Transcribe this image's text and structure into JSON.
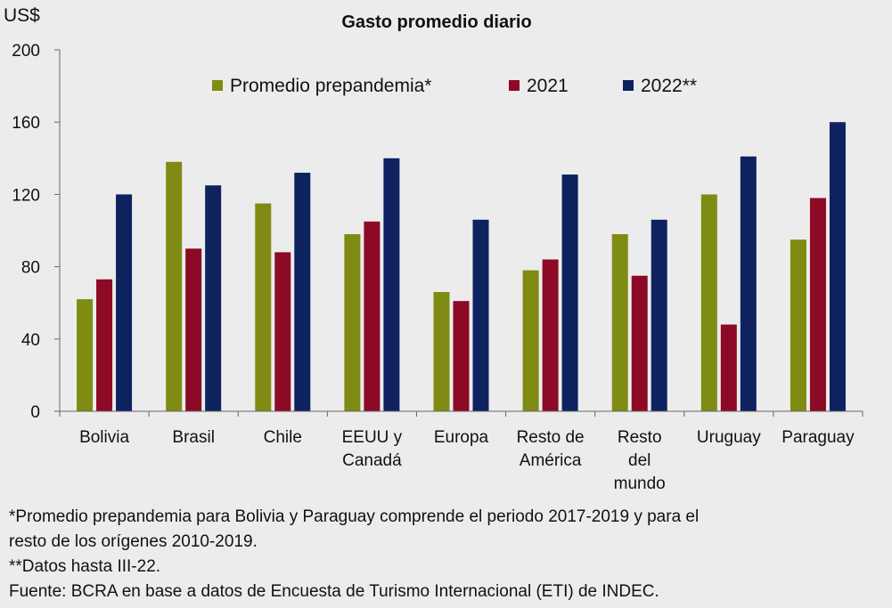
{
  "chart_data": {
    "type": "bar",
    "title": "Gasto promedio diario",
    "ylabel": "US$",
    "xlabel": "",
    "ylim": [
      0,
      200
    ],
    "yticks": [
      0,
      40,
      80,
      120,
      160,
      200
    ],
    "grid": false,
    "legend": "top",
    "categories": [
      [
        "Bolivia"
      ],
      [
        "Brasil"
      ],
      [
        "Chile"
      ],
      [
        "EEUU y",
        "Canadá"
      ],
      [
        "Europa"
      ],
      [
        "Resto de",
        "América"
      ],
      [
        "Resto",
        "del",
        "mundo"
      ],
      [
        "Uruguay"
      ],
      [
        "Paraguay"
      ]
    ],
    "series": [
      {
        "name": "Promedio prepandemia*",
        "color": "#7f8b12",
        "values": [
          62,
          138,
          115,
          98,
          66,
          78,
          98,
          120,
          95
        ]
      },
      {
        "name": "2021",
        "color": "#8c0a26",
        "values": [
          73,
          90,
          88,
          105,
          61,
          84,
          75,
          48,
          118
        ]
      },
      {
        "name": "2022**",
        "color": "#0f2260",
        "values": [
          120,
          125,
          132,
          140,
          106,
          131,
          106,
          141,
          160
        ]
      }
    ]
  },
  "notes": [
    "*Promedio prepandemia para Bolivia y Paraguay comprende el periodo 2017-2019 y para el",
    "resto de los orígenes 2010-2019.",
    "**Datos hasta III-22.",
    "Fuente: BCRA en base a datos de Encuesta de Turismo Internacional (ETI) de INDEC."
  ]
}
